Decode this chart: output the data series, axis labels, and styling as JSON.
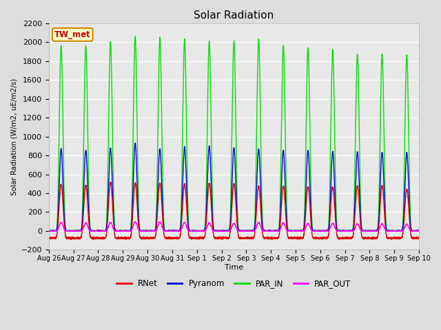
{
  "title": "Solar Radiation",
  "ylabel": "Solar Radiation (W/m2, uE/m2/s)",
  "xlabel": "Time",
  "ylim": [
    -200,
    2200
  ],
  "yticks": [
    -200,
    0,
    200,
    400,
    600,
    800,
    1000,
    1200,
    1400,
    1600,
    1800,
    2000,
    2200
  ],
  "background_color": "#dddddd",
  "plot_bg_color": "#e8e8e8",
  "grid_color": "white",
  "line_colors": {
    "RNet": "#dd0000",
    "Pyranom": "#0000dd",
    "PAR_IN": "#00dd00",
    "PAR_OUT": "#ff00ff"
  },
  "line_widths": {
    "RNet": 1.0,
    "Pyranom": 1.0,
    "PAR_IN": 1.0,
    "PAR_OUT": 1.0
  },
  "station_label": "TW_met",
  "station_label_color": "#cc0000",
  "station_box_facecolor": "#ffffcc",
  "station_box_edgecolor": "#cc8800",
  "num_days": 15,
  "x_tick_labels": [
    "Aug 26",
    "Aug 27",
    "Aug 28",
    "Aug 29",
    "Aug 30",
    "Aug 31",
    "Sep 1",
    "Sep 2",
    "Sep 3",
    "Sep 4",
    "Sep 5",
    "Sep 6",
    "Sep 7",
    "Sep 8",
    "Sep 9",
    "Sep 10"
  ],
  "PAR_IN_peaks": [
    1970,
    1960,
    2000,
    2060,
    2050,
    2020,
    2010,
    2010,
    2030,
    1960,
    1940,
    1920,
    1870,
    1870,
    1860
  ],
  "Pyranom_peaks": [
    870,
    855,
    880,
    930,
    870,
    890,
    900,
    880,
    870,
    855,
    850,
    840,
    835,
    830,
    830
  ],
  "RNet_peaks": [
    570,
    555,
    590,
    580,
    580,
    575,
    580,
    575,
    550,
    550,
    545,
    545,
    550,
    555,
    515
  ],
  "PAR_OUT_peaks": [
    90,
    85,
    90,
    95,
    95,
    90,
    85,
    80,
    90,
    85,
    80,
    80,
    75,
    75,
    70
  ],
  "RNet_night": -75,
  "pts_per_day": 288
}
